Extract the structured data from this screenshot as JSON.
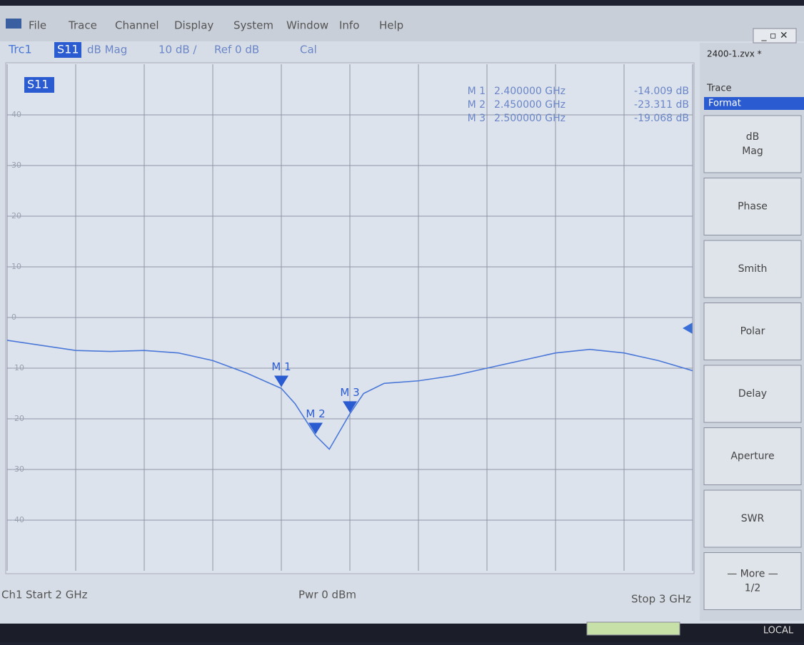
{
  "menu": [
    "File",
    "Trace",
    "Channel",
    "Display",
    "System",
    "Window",
    "Info",
    "Help"
  ],
  "window_title": "2400-1.zvx *",
  "header": {
    "trace": "Trc1",
    "param": "S11",
    "format": "dB Mag",
    "scale": "10 dB /",
    "ref": "Ref 0 dB",
    "cal": "Cal"
  },
  "chart_data": {
    "type": "line",
    "label": "S11",
    "x": [
      2.0,
      2.05,
      2.1,
      2.15,
      2.2,
      2.25,
      2.3,
      2.35,
      2.4,
      2.42,
      2.45,
      2.47,
      2.5,
      2.52,
      2.55,
      2.6,
      2.65,
      2.7,
      2.75,
      2.8,
      2.85,
      2.9,
      2.95,
      3.0
    ],
    "values": [
      -4.5,
      -5.5,
      -6.5,
      -6.7,
      -6.5,
      -7,
      -8.5,
      -11,
      -14,
      -17,
      -23.3,
      -26,
      -19,
      -15,
      -13,
      -12.5,
      -11.5,
      -10,
      -8.5,
      -7,
      -6.3,
      -7,
      -8.5,
      -10.5
    ],
    "color": "#4a78d8",
    "xlim": [
      2,
      3
    ],
    "ylim": [
      -50,
      50
    ],
    "xticks": [
      2.0,
      2.1,
      2.2,
      2.3,
      2.4,
      2.5,
      2.6,
      2.7,
      2.8,
      2.9,
      3.0
    ],
    "yticks": [
      -40,
      -30,
      -20,
      -10,
      0,
      10,
      20,
      30,
      40
    ],
    "grid": true,
    "markers": [
      {
        "name": "M 1",
        "x": 2.4,
        "x_label": "2.400000 GHz",
        "value": -14.009,
        "value_label": "-14.009 dB"
      },
      {
        "name": "M 2",
        "x": 2.45,
        "x_label": "2.450000 GHz",
        "value": -23.311,
        "value_label": "-23.311 dB"
      },
      {
        "name": "M 3",
        "x": 2.5,
        "x_label": "2.500000 GHz",
        "value": -19.068,
        "value_label": "-19.068 dB"
      }
    ]
  },
  "footer": {
    "channel": "Ch1",
    "start": "Start 2 GHz",
    "power": "Pwr 0 dBm",
    "stop": "Stop 3 GHz"
  },
  "softkeys": {
    "group": "Trace",
    "menu": "Format",
    "buttons": [
      [
        "dB",
        "Mag"
      ],
      [
        "Phase"
      ],
      [
        "Smith"
      ],
      [
        "Polar"
      ],
      [
        "Delay"
      ],
      [
        "Aperture"
      ],
      [
        "SWR"
      ],
      [
        "— More —",
        "1/2"
      ]
    ]
  },
  "status": "LOCAL"
}
